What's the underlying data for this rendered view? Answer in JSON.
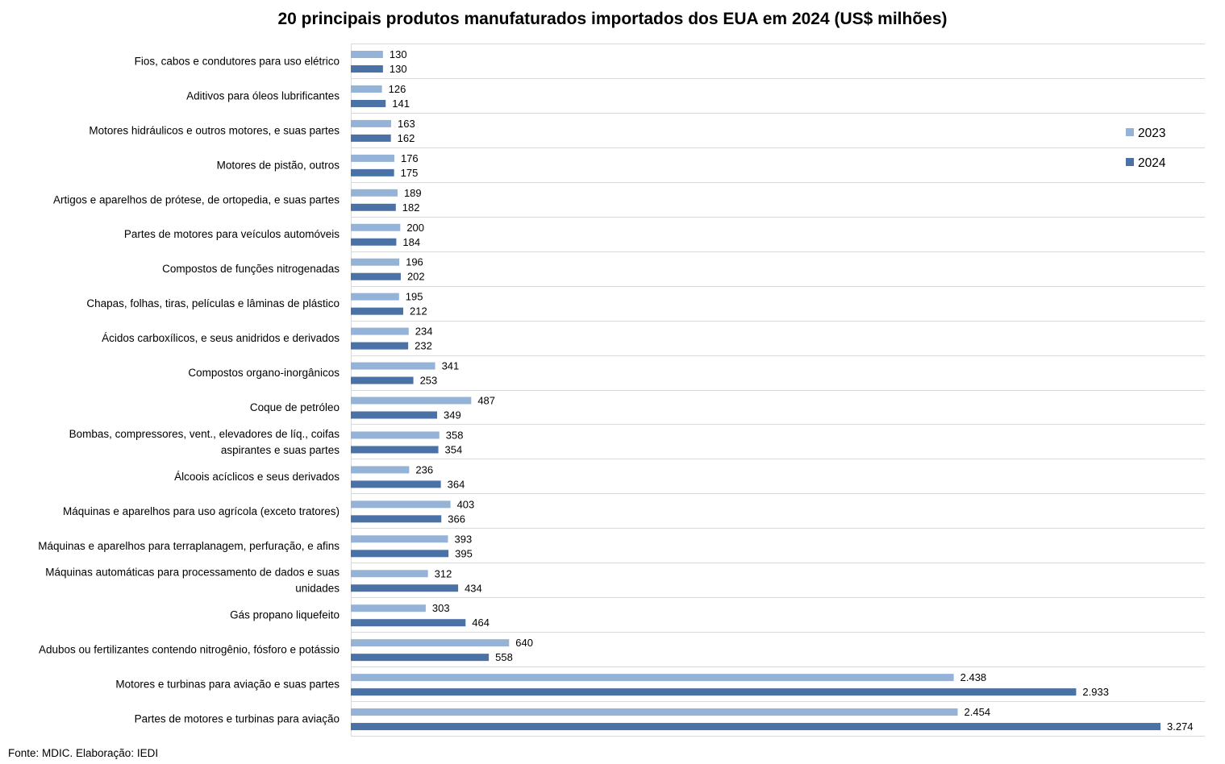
{
  "chart_data": {
    "type": "bar",
    "orientation": "horizontal",
    "title": "20 principais produtos manufaturados importados dos EUA em 2024 (US$ milhões)",
    "categories": [
      "Fios, cabos e condutores para uso elétrico",
      "Aditivos para óleos lubrificantes",
      "Motores hidráulicos e outros motores, e suas partes",
      "Motores de pistão, outros",
      "Artigos e aparelhos de prótese, de ortopedia, e suas partes",
      "Partes de motores para veículos automóveis",
      "Compostos de funções nitrogenadas",
      "Chapas, folhas, tiras, películas e lâminas de plástico",
      "Ácidos carboxílicos, e seus anidridos e derivados",
      "Compostos organo-inorgânicos",
      "Coque de petróleo",
      "Bombas, compressores, vent., elevadores de líq., coifas aspirantes e suas partes",
      "Álcoois acíclicos e seus derivados",
      "Máquinas e aparelhos para uso agrícola (exceto tratores)",
      "Máquinas e aparelhos para terraplanagem, perfuração, e afins",
      "Máquinas automáticas para processamento de dados e suas unidades",
      "Gás propano liquefeito",
      "Adubos ou fertilizantes contendo nitrogênio, fósforo e potássio",
      "Motores e turbinas para aviação e suas partes",
      "Partes de motores e turbinas para aviação"
    ],
    "category_lines": [
      [
        "Fios, cabos e condutores para uso elétrico"
      ],
      [
        "Aditivos para óleos lubrificantes"
      ],
      [
        "Motores hidráulicos e outros motores, e suas partes"
      ],
      [
        "Motores de pistão, outros"
      ],
      [
        "Artigos e aparelhos de prótese, de ortopedia, e suas partes"
      ],
      [
        "Partes de motores para veículos automóveis"
      ],
      [
        "Compostos de funções nitrogenadas"
      ],
      [
        "Chapas, folhas, tiras, películas e lâminas de plástico"
      ],
      [
        "Ácidos carboxílicos, e seus anidridos e derivados"
      ],
      [
        "Compostos organo-inorgânicos"
      ],
      [
        "Coque de petróleo"
      ],
      [
        "Bombas, compressores, vent., elevadores de líq., coifas",
        "aspirantes e suas partes"
      ],
      [
        "Álcoois acíclicos e seus derivados"
      ],
      [
        "Máquinas e aparelhos para uso agrícola (exceto tratores)"
      ],
      [
        "Máquinas e aparelhos para terraplanagem, perfuração, e afins"
      ],
      [
        "Máquinas automáticas para processamento de dados e suas",
        "unidades"
      ],
      [
        "Gás propano liquefeito"
      ],
      [
        "Adubos ou fertilizantes contendo nitrogênio, fósforo e potássio"
      ],
      [
        "Motores e turbinas para aviação e suas partes"
      ],
      [
        "Partes de motores e turbinas para aviação"
      ]
    ],
    "series": [
      {
        "name": "2023",
        "color": "#95b3d7",
        "values": [
          130,
          126,
          163,
          176,
          189,
          200,
          196,
          195,
          234,
          341,
          487,
          358,
          236,
          403,
          393,
          312,
          303,
          640,
          2438,
          2454
        ],
        "labels": [
          "130",
          "126",
          "163",
          "176",
          "189",
          "200",
          "196",
          "195",
          "234",
          "341",
          "487",
          "358",
          "236",
          "403",
          "393",
          "312",
          "303",
          "640",
          "2.438",
          "2.454"
        ]
      },
      {
        "name": "2024",
        "color": "#4a72a6",
        "values": [
          130,
          141,
          162,
          175,
          182,
          184,
          202,
          212,
          232,
          253,
          349,
          354,
          364,
          366,
          395,
          434,
          464,
          558,
          2933,
          3274
        ],
        "labels": [
          "130",
          "141",
          "162",
          "175",
          "182",
          "184",
          "202",
          "212",
          "232",
          "253",
          "349",
          "354",
          "364",
          "366",
          "395",
          "434",
          "464",
          "558",
          "2.933",
          "3.274"
        ]
      }
    ],
    "xlim": [
      0,
      3274
    ],
    "grid": "horizontal separators",
    "legend_position": "right"
  },
  "source_note": "Fonte: MDIC. Elaboração: IEDI"
}
